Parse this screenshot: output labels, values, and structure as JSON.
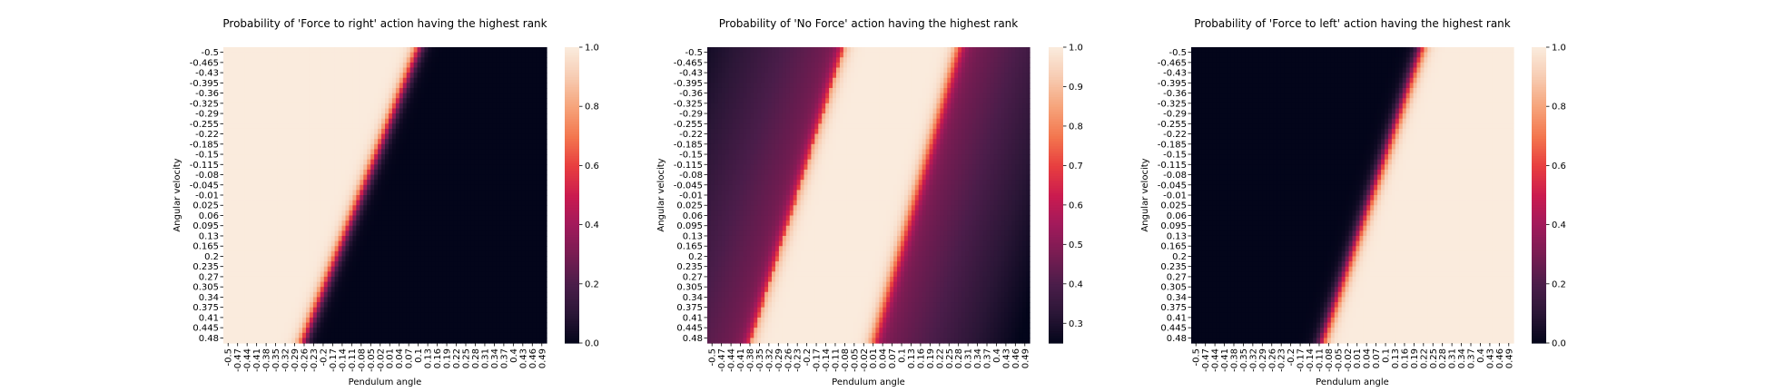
{
  "chart_data": [
    {
      "type": "heatmap",
      "title": "Probability of 'Force to right' action having the highest rank",
      "xlabel": "Pendulum angle",
      "ylabel": "Angular velocity",
      "x_ticks": [
        "-0.5",
        "-0.47",
        "-0.44",
        "-0.41",
        "-0.38",
        "-0.35",
        "-0.32",
        "-0.29",
        "-0.26",
        "-0.23",
        "-0.2",
        "-0.17",
        "-0.14",
        "-0.11",
        "-0.08",
        "-0.05",
        "-0.02",
        "0.01",
        "0.04",
        "0.07",
        "0.1",
        "0.13",
        "0.16",
        "0.19",
        "0.22",
        "0.25",
        "0.28",
        "0.31",
        "0.34",
        "0.37",
        "0.4",
        "0.43",
        "0.46",
        "0.49"
      ],
      "y_ticks": [
        "-0.5",
        "-0.465",
        "-0.43",
        "-0.395",
        "-0.36",
        "-0.325",
        "-0.29",
        "-0.255",
        "-0.22",
        "-0.185",
        "-0.15",
        "-0.115",
        "-0.08",
        "-0.045",
        "-0.01",
        "0.025",
        "0.06",
        "0.095",
        "0.13",
        "0.165",
        "0.2",
        "0.235",
        "0.27",
        "0.305",
        "0.34",
        "0.375",
        "0.41",
        "0.445",
        "0.48"
      ],
      "colorbar": {
        "min": 0.0,
        "max": 1.0,
        "ticks": [
          "0.0",
          "0.2",
          "0.4",
          "0.6",
          "0.8",
          "1.0"
        ],
        "tick_values": [
          0,
          0.2,
          0.4,
          0.6,
          0.8,
          1.0
        ]
      },
      "transition_center": [
        {
          "velocity": -0.5,
          "angle": 0.105
        },
        {
          "velocity": 0.5,
          "angle": -0.255
        }
      ],
      "transition_width": 0.045,
      "pattern": "1.0 left of the diagonal boundary, falling to 0.0 right of it"
    },
    {
      "type": "heatmap",
      "title": "Probability of 'No Force' action having the highest rank",
      "xlabel": "Pendulum angle",
      "ylabel": "Angular velocity",
      "x_ticks": [
        "-0.5",
        "-0.47",
        "-0.44",
        "-0.41",
        "-0.38",
        "-0.35",
        "-0.32",
        "-0.29",
        "-0.26",
        "-0.23",
        "-0.2",
        "-0.17",
        "-0.14",
        "-0.11",
        "-0.08",
        "-0.05",
        "-0.02",
        "0.01",
        "0.04",
        "0.07",
        "0.1",
        "0.13",
        "0.16",
        "0.19",
        "0.22",
        "0.25",
        "0.28",
        "0.31",
        "0.34",
        "0.37",
        "0.4",
        "0.43",
        "0.46",
        "0.49"
      ],
      "y_ticks": [
        "-0.5",
        "-0.465",
        "-0.43",
        "-0.395",
        "-0.36",
        "-0.325",
        "-0.29",
        "-0.255",
        "-0.22",
        "-0.185",
        "-0.15",
        "-0.115",
        "-0.08",
        "-0.045",
        "-0.01",
        "0.025",
        "0.06",
        "0.095",
        "0.13",
        "0.165",
        "0.2",
        "0.235",
        "0.27",
        "0.305",
        "0.34",
        "0.375",
        "0.41",
        "0.445",
        "0.48"
      ],
      "colorbar": {
        "min": 0.25,
        "max": 1.0,
        "ticks": [
          "0.3",
          "0.4",
          "0.5",
          "0.6",
          "0.7",
          "0.8",
          "0.9",
          "1.0"
        ],
        "tick_values": [
          0.3,
          0.4,
          0.5,
          0.6,
          0.7,
          0.8,
          0.9,
          1.0
        ]
      },
      "left_boundary": [
        {
          "velocity": -0.5,
          "angle": -0.075
        },
        {
          "velocity": 0.5,
          "angle": -0.365
        }
      ],
      "right_boundary": [
        {
          "velocity": -0.5,
          "angle": 0.28
        },
        {
          "velocity": 0.5,
          "angle": 0.015
        }
      ],
      "pattern": "near 1.0 in the diagonal band between boundaries, ~0.25-0.5 outside"
    },
    {
      "type": "heatmap",
      "title": "Probability of 'Force to left' action having the highest rank",
      "xlabel": "Pendulum angle",
      "ylabel": "Angular velocity",
      "x_ticks": [
        "-0.5",
        "-0.47",
        "-0.44",
        "-0.41",
        "-0.38",
        "-0.35",
        "-0.32",
        "-0.29",
        "-0.26",
        "-0.23",
        "-0.2",
        "-0.17",
        "-0.14",
        "-0.11",
        "-0.08",
        "-0.05",
        "-0.02",
        "0.01",
        "0.04",
        "0.07",
        "0.1",
        "0.13",
        "0.16",
        "0.19",
        "0.22",
        "0.25",
        "0.28",
        "0.31",
        "0.34",
        "0.37",
        "0.4",
        "0.43",
        "0.46",
        "0.49"
      ],
      "y_ticks": [
        "-0.5",
        "-0.465",
        "-0.43",
        "-0.395",
        "-0.36",
        "-0.325",
        "-0.29",
        "-0.255",
        "-0.22",
        "-0.185",
        "-0.15",
        "-0.115",
        "-0.08",
        "-0.045",
        "-0.01",
        "0.025",
        "0.06",
        "0.095",
        "0.13",
        "0.165",
        "0.2",
        "0.235",
        "0.27",
        "0.305",
        "0.34",
        "0.375",
        "0.41",
        "0.445",
        "0.48"
      ],
      "colorbar": {
        "min": 0.0,
        "max": 1.0,
        "ticks": [
          "0.0",
          "0.2",
          "0.4",
          "0.6",
          "0.8",
          "1.0"
        ],
        "tick_values": [
          0,
          0.2,
          0.4,
          0.6,
          0.8,
          1.0
        ]
      },
      "transition_center": [
        {
          "velocity": -0.5,
          "angle": 0.215
        },
        {
          "velocity": 0.5,
          "angle": -0.095
        }
      ],
      "transition_width": 0.045,
      "pattern": "0.0 left of the diagonal boundary, rising to 1.0 right of it"
    }
  ],
  "colormap": {
    "name": "rocket",
    "stops": [
      "#03051a",
      "#2a1636",
      "#4b1d4a",
      "#781c52",
      "#a11a5b",
      "#cb1b4f",
      "#e83f3f",
      "#f3774f",
      "#f6a47b",
      "#f7ccb2",
      "#faebdd"
    ]
  }
}
